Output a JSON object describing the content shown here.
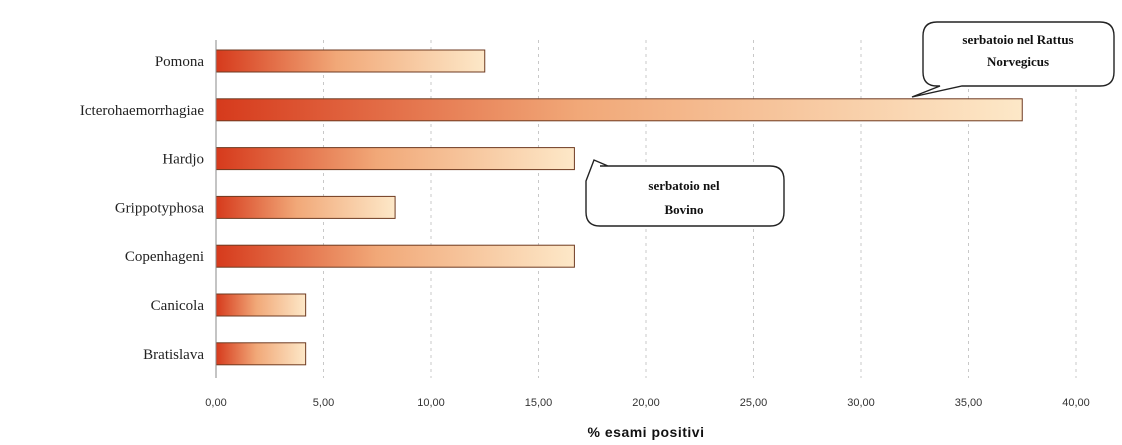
{
  "chart_data": {
    "type": "bar",
    "orientation": "horizontal",
    "categories": [
      "Pomona",
      "Icterohaemorrhagiae",
      "Hardjo",
      "Grippotyphosa",
      "Copenhageni",
      "Canicola",
      "Bratislava"
    ],
    "values": [
      12.5,
      37.5,
      16.67,
      8.33,
      16.67,
      4.17,
      4.17
    ],
    "xlabel": "% esami positivi",
    "xlim": [
      0,
      40
    ],
    "xticks": [
      0,
      5,
      10,
      15,
      20,
      25,
      30,
      35,
      40
    ],
    "xtick_labels": [
      "0,00",
      "5,00",
      "10,00",
      "15,00",
      "20,00",
      "25,00",
      "30,00",
      "35,00",
      "40,00"
    ],
    "grid": true,
    "legend": "none",
    "bar_gradient": {
      "start": "#d63a1c",
      "mid": "#f1a878",
      "end": "#fde8c8"
    },
    "annotations": [
      {
        "target": "Icterohaemorrhagiae",
        "lines": [
          "serbatoio nel Rattus",
          "Norvegicus"
        ]
      },
      {
        "target": "Hardjo",
        "lines": [
          "serbatoio nel",
          "Bovino"
        ]
      }
    ]
  }
}
